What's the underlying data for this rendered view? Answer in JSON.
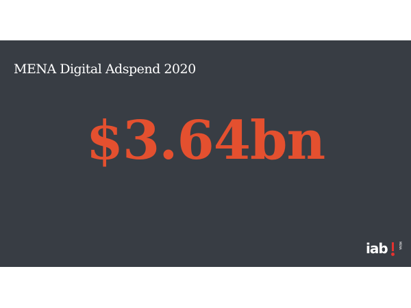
{
  "slide": {
    "title": "MENA Digital Adspend 2020",
    "figure": "$3.64bn"
  },
  "logo": {
    "text": "iab",
    "region": "MENA"
  },
  "colors": {
    "slide_background": "#383d44",
    "figure": "#e4502f",
    "logo_accent": "#e4312f",
    "title": "#ffffff"
  }
}
